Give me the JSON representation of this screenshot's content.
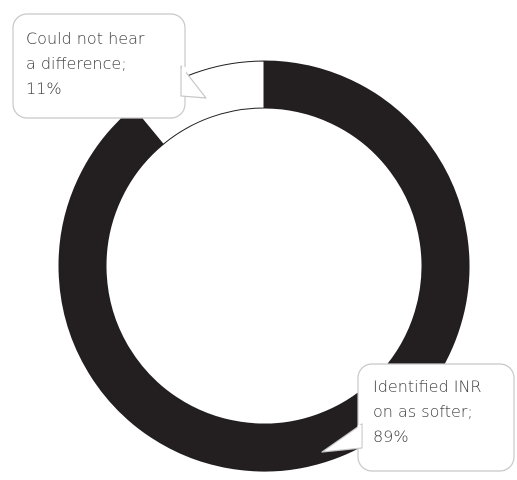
{
  "chart_data": {
    "type": "pie",
    "donut": true,
    "categories": [
      "Identified INR on as softer",
      "Could not hear a difference"
    ],
    "values": [
      89,
      11
    ],
    "colors": [
      "#231f20",
      "#ffffff"
    ],
    "outline_color": "#231f20",
    "callouts": [
      {
        "lines": [
          "Identified INR",
          "on as softer;",
          "89%"
        ]
      },
      {
        "lines": [
          "Could not hear",
          "a difference;",
          "11%"
        ]
      }
    ],
    "legend": "none"
  }
}
